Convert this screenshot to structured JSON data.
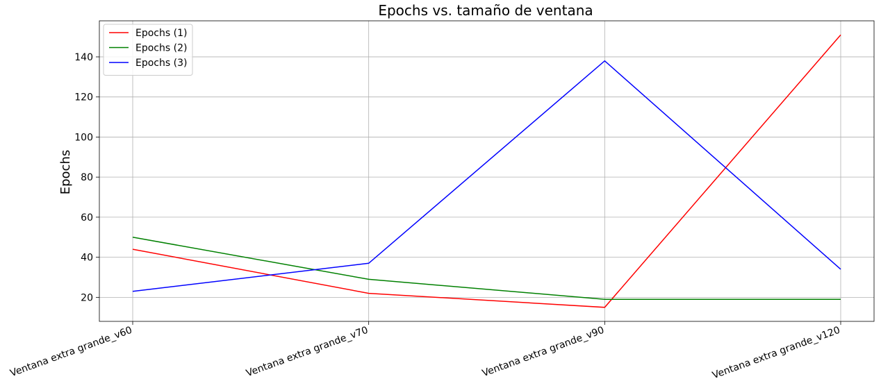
{
  "chart_data": {
    "type": "line",
    "title": "Epochs vs. tamaño de ventana",
    "xlabel": "",
    "ylabel": "Epochs",
    "categories": [
      "Ventana extra grande_v60",
      "Ventana extra grande_v70",
      "Ventana extra grande_v90",
      "Ventana extra grande_v120"
    ],
    "series": [
      {
        "name": "Epochs (1)",
        "color": "#ff0000",
        "values": [
          44,
          22,
          15,
          151
        ]
      },
      {
        "name": "Epochs (2)",
        "color": "#008000",
        "values": [
          50,
          29,
          19,
          19
        ]
      },
      {
        "name": "Epochs (3)",
        "color": "#0000ff",
        "values": [
          23,
          37,
          138,
          34
        ]
      }
    ],
    "ylim": [
      8,
      158
    ],
    "yticks": [
      20,
      40,
      60,
      80,
      100,
      120,
      140
    ],
    "grid": true,
    "legend_position": "top-left"
  }
}
